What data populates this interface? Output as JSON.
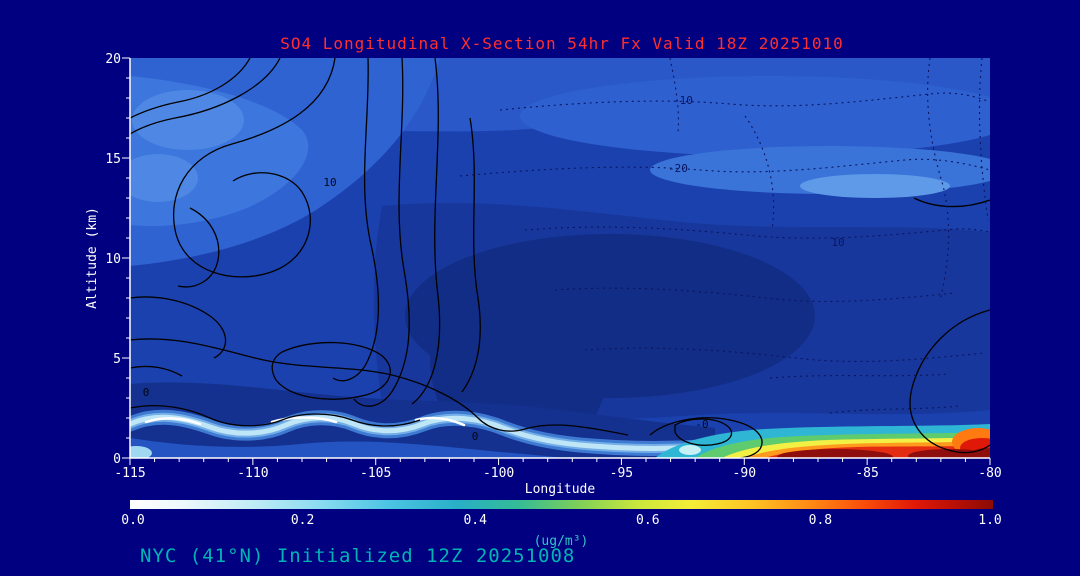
{
  "page": {
    "title": "SO4 Longitudinal X-Section 54hr  Fx Valid 18Z 20251010",
    "footer": "NYC (41°N) Initialized 12Z 20251008"
  },
  "colors": {
    "background": "#000080",
    "title": "#ff2f2f",
    "axis": "#ffffff",
    "footer_teal": "#00b4b4",
    "units_cyan": "#2fc6c6",
    "contour_line": "#000000",
    "dashed_contour_line": "#0a1560"
  },
  "chart_data": {
    "type": "heatmap",
    "title": "SO4 Longitudinal X-Section 54hr  Fx Valid 18Z 20251010",
    "xlabel": "Longitude",
    "ylabel": "Altitude (km)",
    "xlim": [
      -115,
      -80
    ],
    "ylim": [
      0,
      20
    ],
    "x_ticks": [
      "-115",
      "-110",
      "-105",
      "-100",
      "-95",
      "-90",
      "-85",
      "-80"
    ],
    "y_ticks": [
      "0",
      "5",
      "10",
      "15",
      "20"
    ],
    "colorbar": {
      "label": "(ug/m³)",
      "min": 0.0,
      "max": 1.0,
      "ticks": [
        "0.0",
        "0.2",
        "0.4",
        "0.6",
        "0.8",
        "1.0"
      ],
      "colors": [
        "#ffffff",
        "#c2ecf6",
        "#4cc4e4",
        "#34bc96",
        "#cce83c",
        "#f4ee38",
        "#ffc424",
        "#ff8814",
        "#e01808",
        "#8b0b06"
      ]
    },
    "contour_labels": [
      "-10",
      "-20",
      "10",
      "10",
      "0",
      "-0",
      "0"
    ],
    "fill_summary": [
      {
        "region": "most of cross-section",
        "value_ugm3": "0.0-0.1",
        "rendered": "shades of blue"
      },
      {
        "region": "thin layer 1-2 km altitude, lon -115 to -97",
        "value_ugm3": "0.1-0.3",
        "rendered": "cyan-white band"
      },
      {
        "region": "surface 0-1.5 km, lon -92 to -80",
        "value_ugm3": "0.4-1.0",
        "rendered": "green-yellow-orange-red"
      },
      {
        "region": "surface maxima near lon -88 and -82",
        "value_ugm3": "1.0",
        "rendered": "dark red"
      }
    ],
    "overlay": "solid black contour lines (left half, values around 0-10) and dashed dark contour lines (right half, values -20 to 10)"
  }
}
